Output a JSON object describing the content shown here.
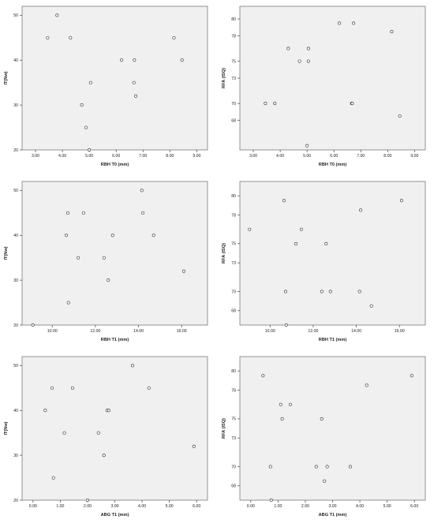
{
  "chart_data": [
    {
      "type": "scatter",
      "xlabel": "RBH T0 (mm)",
      "ylabel": "IT(Nw)",
      "xlim": [
        2.5,
        9.4
      ],
      "ylim": [
        20,
        52
      ],
      "xticks": [
        "3.00",
        "4.00",
        "5.00",
        "6.00",
        "7.00",
        "8.00",
        "9.00"
      ],
      "yticks": [
        "20",
        "30",
        "40",
        "50"
      ],
      "grid": false,
      "points": [
        {
          "x": 3.45,
          "y": 45
        },
        {
          "x": 3.8,
          "y": 50
        },
        {
          "x": 4.3,
          "y": 45
        },
        {
          "x": 4.72,
          "y": 30
        },
        {
          "x": 4.88,
          "y": 25
        },
        {
          "x": 5.0,
          "y": 20
        },
        {
          "x": 5.05,
          "y": 35
        },
        {
          "x": 6.2,
          "y": 40
        },
        {
          "x": 6.66,
          "y": 35
        },
        {
          "x": 6.68,
          "y": 40
        },
        {
          "x": 6.73,
          "y": 32
        },
        {
          "x": 8.15,
          "y": 45
        },
        {
          "x": 8.45,
          "y": 40
        }
      ]
    },
    {
      "type": "scatter",
      "xlabel": "RBH T0 (mm)",
      "ylabel": "RFA (ISQ)",
      "xlim": [
        2.5,
        9.4
      ],
      "ylim": [
        64.5,
        81.5
      ],
      "xticks": [
        "3.00",
        "4.00",
        "5.00",
        "6.00",
        "7.00",
        "8.00",
        "9.00"
      ],
      "yticks": [
        "68",
        "70",
        "73",
        "75",
        "78",
        "80"
      ],
      "grid": false,
      "points": [
        {
          "x": 3.45,
          "y": 70
        },
        {
          "x": 3.8,
          "y": 70
        },
        {
          "x": 4.3,
          "y": 76.5
        },
        {
          "x": 4.72,
          "y": 75
        },
        {
          "x": 5.0,
          "y": 65
        },
        {
          "x": 5.05,
          "y": 75
        },
        {
          "x": 5.05,
          "y": 76.5
        },
        {
          "x": 6.2,
          "y": 79.5
        },
        {
          "x": 6.66,
          "y": 70
        },
        {
          "x": 6.68,
          "y": 70
        },
        {
          "x": 6.73,
          "y": 79.5
        },
        {
          "x": 8.15,
          "y": 78.5
        },
        {
          "x": 8.45,
          "y": 68.5
        }
      ]
    },
    {
      "type": "scatter",
      "xlabel": "RBH T1 (mm)",
      "ylabel": "IT(Nw)",
      "xlim": [
        8.6,
        17.2
      ],
      "ylim": [
        20,
        52
      ],
      "xticks": [
        "10.00",
        "12.00",
        "14.00",
        "16.00"
      ],
      "yticks": [
        "20",
        "30",
        "40",
        "50"
      ],
      "grid": false,
      "points": [
        {
          "x": 9.1,
          "y": 20
        },
        {
          "x": 10.65,
          "y": 40
        },
        {
          "x": 10.72,
          "y": 45
        },
        {
          "x": 10.75,
          "y": 25
        },
        {
          "x": 11.2,
          "y": 35
        },
        {
          "x": 11.45,
          "y": 45
        },
        {
          "x": 12.4,
          "y": 35
        },
        {
          "x": 12.6,
          "y": 30
        },
        {
          "x": 12.8,
          "y": 40
        },
        {
          "x": 14.15,
          "y": 50
        },
        {
          "x": 14.2,
          "y": 45
        },
        {
          "x": 14.7,
          "y": 40
        },
        {
          "x": 16.1,
          "y": 32
        }
      ]
    },
    {
      "type": "scatter",
      "xlabel": "RBH T1 (mm)",
      "ylabel": "RFA (ISQ)",
      "xlim": [
        8.6,
        17.2
      ],
      "ylim": [
        66.5,
        81.5
      ],
      "xticks": [
        "10.00",
        "12.00",
        "14.00",
        "16.00"
      ],
      "yticks": [
        "68",
        "70",
        "73",
        "75",
        "78",
        "80"
      ],
      "grid": false,
      "points": [
        {
          "x": 9.05,
          "y": 76.5
        },
        {
          "x": 10.65,
          "y": 79.5
        },
        {
          "x": 10.72,
          "y": 70
        },
        {
          "x": 10.75,
          "y": 66.5
        },
        {
          "x": 11.2,
          "y": 75
        },
        {
          "x": 11.45,
          "y": 76.5
        },
        {
          "x": 12.4,
          "y": 70
        },
        {
          "x": 12.6,
          "y": 75
        },
        {
          "x": 12.8,
          "y": 70
        },
        {
          "x": 14.15,
          "y": 70
        },
        {
          "x": 14.2,
          "y": 78.5
        },
        {
          "x": 14.7,
          "y": 68.5
        },
        {
          "x": 16.1,
          "y": 79.5
        }
      ]
    },
    {
      "type": "scatter",
      "xlabel": "ABG T1 (mm)",
      "ylabel": "IT(Nw)",
      "xlim": [
        -0.4,
        6.4
      ],
      "ylim": [
        20,
        52
      ],
      "xticks": [
        "0.00",
        "1.00",
        "2.00",
        "3.00",
        "4.00",
        "5.00",
        "6.00"
      ],
      "yticks": [
        "20",
        "30",
        "40",
        "50"
      ],
      "grid": false,
      "points": [
        {
          "x": 0.45,
          "y": 40
        },
        {
          "x": 0.7,
          "y": 45
        },
        {
          "x": 0.75,
          "y": 25
        },
        {
          "x": 1.15,
          "y": 35
        },
        {
          "x": 1.45,
          "y": 45
        },
        {
          "x": 2.0,
          "y": 20
        },
        {
          "x": 2.4,
          "y": 35
        },
        {
          "x": 2.6,
          "y": 30
        },
        {
          "x": 2.72,
          "y": 40
        },
        {
          "x": 2.78,
          "y": 40
        },
        {
          "x": 3.65,
          "y": 50
        },
        {
          "x": 4.25,
          "y": 45
        },
        {
          "x": 5.9,
          "y": 32
        }
      ]
    },
    {
      "type": "scatter",
      "xlabel": "ABG T1 (mm)",
      "ylabel": "RFA (ISQ)",
      "xlim": [
        -0.4,
        6.4
      ],
      "ylim": [
        66.5,
        81.5
      ],
      "xticks": [
        "0.00",
        "1.00",
        "2.00",
        "3.00",
        "4.00",
        "5.00",
        "6.00"
      ],
      "yticks": [
        "68",
        "70",
        "73",
        "75",
        "78",
        "80"
      ],
      "grid": false,
      "points": [
        {
          "x": 0.45,
          "y": 79.5
        },
        {
          "x": 0.72,
          "y": 70
        },
        {
          "x": 0.75,
          "y": 66.5
        },
        {
          "x": 1.1,
          "y": 76.5
        },
        {
          "x": 1.15,
          "y": 75
        },
        {
          "x": 1.45,
          "y": 76.5
        },
        {
          "x": 2.4,
          "y": 70
        },
        {
          "x": 2.6,
          "y": 75
        },
        {
          "x": 2.7,
          "y": 68.5
        },
        {
          "x": 2.8,
          "y": 70
        },
        {
          "x": 3.65,
          "y": 70
        },
        {
          "x": 4.25,
          "y": 78.5
        },
        {
          "x": 5.9,
          "y": 79.5
        }
      ]
    }
  ]
}
